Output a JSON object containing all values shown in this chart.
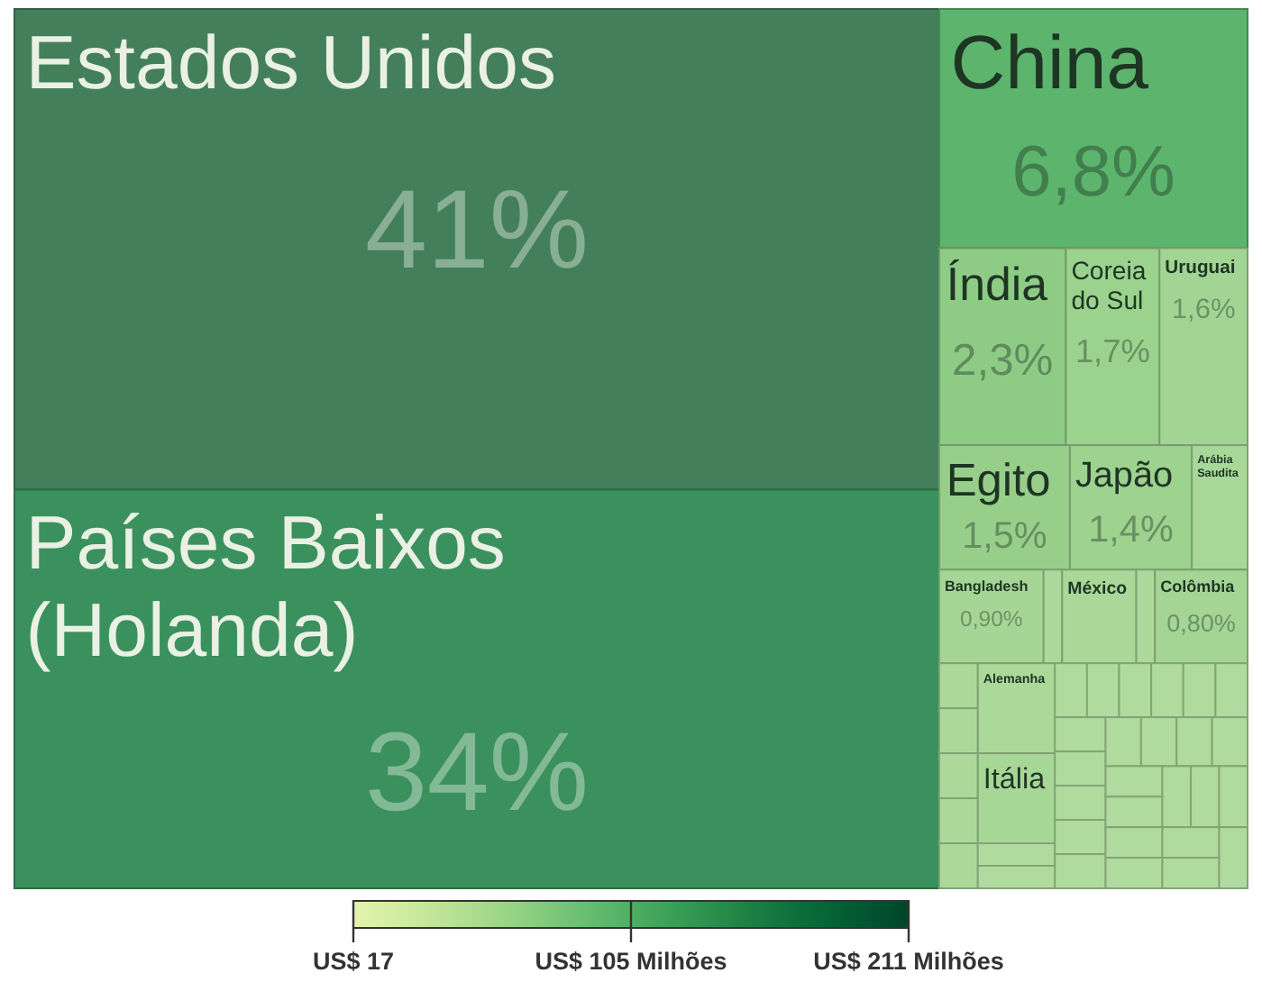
{
  "chart_data": {
    "type": "other",
    "categories": [
      "Estados Unidos",
      "Países Baixos (Holanda)",
      "China",
      "Índia",
      "Coreia do Sul",
      "Uruguai",
      "Egito",
      "Japão",
      "Arábia Saudita",
      "Bangladesh",
      null,
      "México",
      null,
      "Colômbia",
      null,
      null,
      null,
      null,
      null,
      "Alemanha",
      "Itália",
      null,
      null,
      null,
      null,
      null,
      null,
      null,
      null,
      null,
      null,
      null,
      null,
      null,
      null,
      null,
      null,
      null,
      null,
      null,
      null,
      null,
      null,
      null,
      null,
      null,
      null,
      null
    ],
    "values": [
      41,
      34,
      6.8,
      2.3,
      1.7,
      1.6,
      1.5,
      1.4,
      null,
      0.9,
      null,
      null,
      null,
      0.8,
      null,
      null,
      null,
      null,
      null,
      null,
      null,
      null,
      null,
      null,
      null,
      null,
      null,
      null,
      null,
      null,
      null,
      null,
      null,
      null,
      null,
      null,
      null,
      null,
      null,
      null,
      null,
      null,
      null,
      null,
      null,
      null,
      null,
      null
    ],
    "value_labels": [
      "41%",
      "34%",
      "6,8%",
      "2,3%",
      "1,7%",
      "1,6%",
      "1,5%",
      "1,4%",
      null,
      "0,90%",
      null,
      null,
      null,
      "0,80%",
      null,
      null,
      null,
      null,
      null,
      null,
      null,
      null,
      null,
      null,
      null,
      null,
      null,
      null,
      null,
      null,
      null,
      null,
      null,
      null,
      null,
      null,
      null,
      null,
      null,
      null,
      null,
      null,
      null,
      null,
      null,
      null,
      null,
      null
    ],
    "colors": [
      "#437f5a",
      "#3a915d",
      "#5cb46d",
      "#8ecc85",
      "#9bd28e",
      "#a2d593",
      "#97cf8a",
      "#9dd28f",
      "#a8d898",
      "#a5d695",
      "#acd99b",
      "#a9d898",
      "#add99b",
      "#a4d594",
      "#acd99a",
      "#acd99a",
      "#acd99a",
      "#acd99a",
      "#acd99a",
      "#aad999",
      "#a7d797",
      "#b0db9e",
      "#b0db9e",
      "#b0db9e",
      "#b0db9e",
      "#b0db9e",
      "#b0db9e",
      "#b0db9e",
      "#b0db9e",
      "#b0db9e",
      "#b0db9e",
      "#b0db9e",
      "#b0db9e",
      "#b0db9e",
      "#b0db9e",
      "#b0db9e",
      "#b0db9e",
      "#b0db9e",
      "#b0db9e",
      "#b0db9e",
      "#b0db9e",
      "#b0db9e",
      "#b0db9e",
      "#b0db9e",
      "#b0db9e",
      "#b0db9e",
      "#b0db9e",
      "#b0db9e"
    ],
    "annotations": [
      "US$ 17",
      "US$ 105 Milhões",
      "US$ 211 Milhões"
    ]
  }
}
